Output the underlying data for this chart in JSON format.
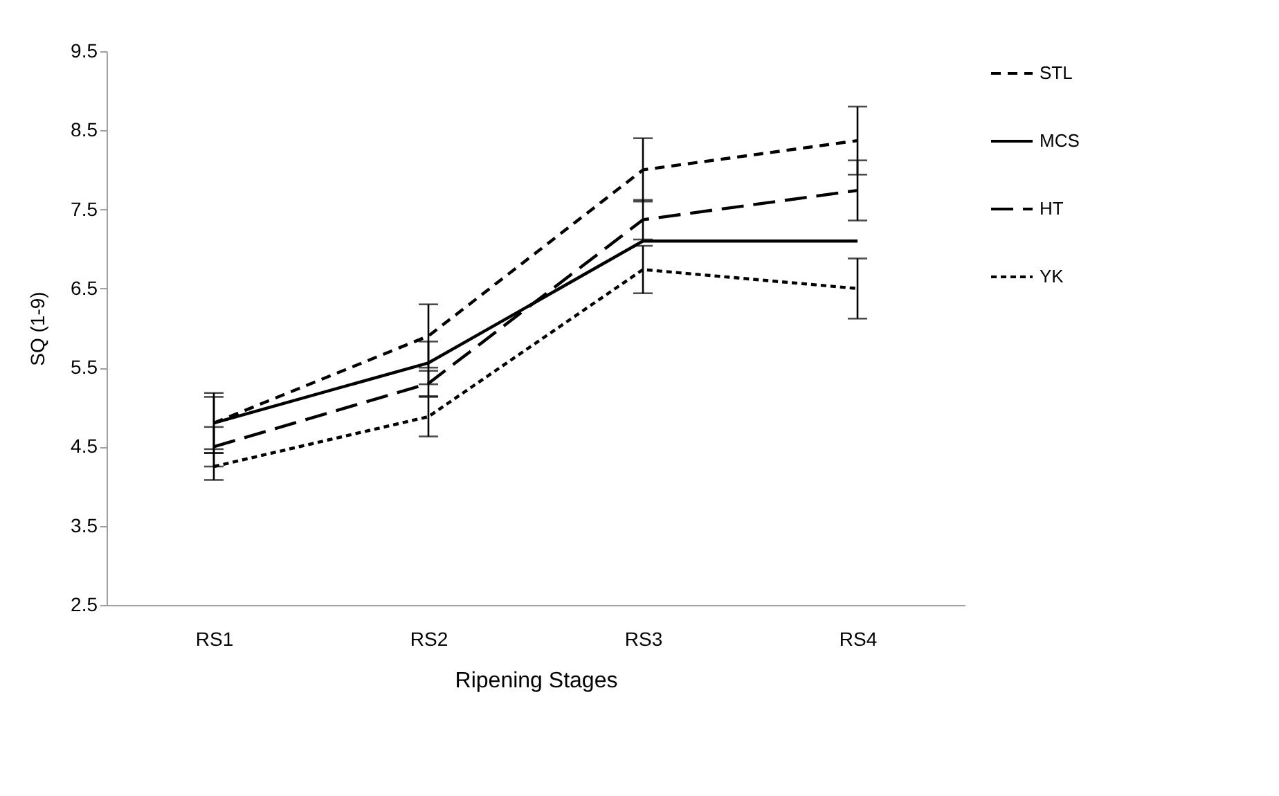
{
  "chart_data": {
    "type": "line",
    "xlabel": "Ripening Stages",
    "ylabel": "SQ (1-9)",
    "categories": [
      "RS1",
      "RS2",
      "RS3",
      "RS4"
    ],
    "series": [
      {
        "name": "STL",
        "color": "#000000",
        "line_style": "dashed",
        "values": [
          4.8,
          5.9,
          8.0,
          8.37
        ],
        "errors": [
          0.38,
          0.4,
          0.4,
          0.43
        ]
      },
      {
        "name": "MCS",
        "color": "#000000",
        "line_style": "solid",
        "values": [
          4.8,
          5.56,
          7.1,
          7.1
        ],
        "errors": [
          0.33,
          0.27,
          null,
          null
        ]
      },
      {
        "name": "HT",
        "color": "#000000",
        "line_style": "dashed",
        "values": [
          4.5,
          5.3,
          7.37,
          7.74
        ],
        "errors": [
          0.25,
          0.16,
          0.25,
          0.38
        ]
      },
      {
        "name": "YK",
        "color": "#000000",
        "line_style": "dotted",
        "values": [
          4.25,
          4.88,
          6.74,
          6.5
        ],
        "errors": [
          0.17,
          0.25,
          0.3,
          0.38
        ]
      }
    ],
    "ylim": [
      2.5,
      9.5
    ],
    "yticks": [
      2.5,
      3.5,
      4.5,
      5.5,
      6.5,
      7.5,
      8.5,
      9.5
    ],
    "grid": false,
    "legend": "top right",
    "marker": "none"
  }
}
